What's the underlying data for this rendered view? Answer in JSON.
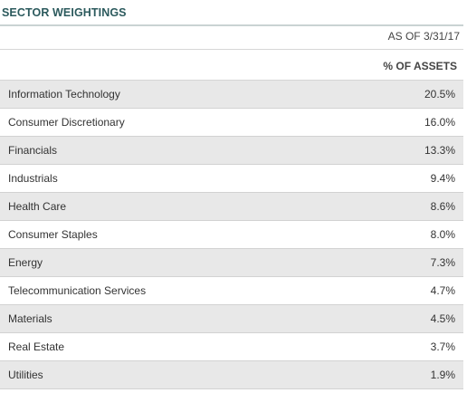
{
  "widget": {
    "title": "SECTOR WEIGHTINGS",
    "as_of": "AS OF 3/31/17",
    "column_header": "% OF ASSETS",
    "colors": {
      "title": "#2c5a5d",
      "row_shade": "#e8e8e8",
      "divider": "#d2d2d2"
    }
  },
  "sectors": [
    {
      "name": "Information Technology",
      "pct": "20.5%"
    },
    {
      "name": "Consumer Discretionary",
      "pct": "16.0%"
    },
    {
      "name": "Financials",
      "pct": "13.3%"
    },
    {
      "name": "Industrials",
      "pct": "9.4%"
    },
    {
      "name": "Health Care",
      "pct": "8.6%"
    },
    {
      "name": "Consumer Staples",
      "pct": "8.0%"
    },
    {
      "name": "Energy",
      "pct": "7.3%"
    },
    {
      "name": "Telecommunication Services",
      "pct": "4.7%"
    },
    {
      "name": "Materials",
      "pct": "4.5%"
    },
    {
      "name": "Real Estate",
      "pct": "3.7%"
    },
    {
      "name": "Utilities",
      "pct": "1.9%"
    }
  ]
}
